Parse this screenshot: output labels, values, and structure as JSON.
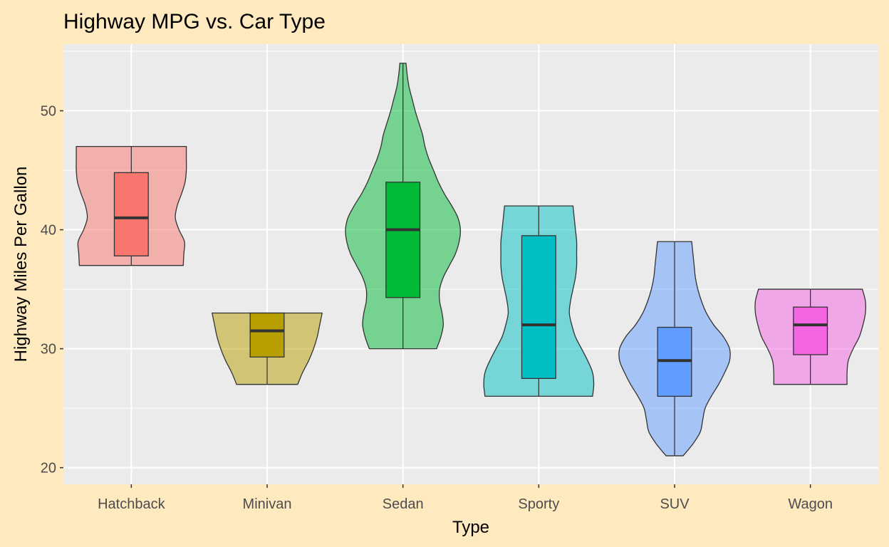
{
  "chart_data": {
    "type": "violin",
    "title": "Highway MPG vs. Car Type",
    "xlabel": "Type",
    "ylabel": "Highway Miles Per Gallon",
    "ylim": [
      18.6,
      55.6
    ],
    "y_ticks": [
      20,
      30,
      40,
      50
    ],
    "grid": true,
    "legend": "none",
    "categories": [
      "Hatchback",
      "Minivan",
      "Sedan",
      "Sporty",
      "SUV",
      "Wagon"
    ],
    "colors": {
      "Hatchback": "#F8766D",
      "Minivan": "#B79F00",
      "Sedan": "#00BA38",
      "Sporty": "#00BFC4",
      "SUV": "#619CFF",
      "Wagon": "#F564E3"
    },
    "series": [
      {
        "category": "Hatchback",
        "min": 37,
        "q1": 37.8,
        "median": 41,
        "q3": 44.8,
        "max": 47,
        "density": [
          [
            37,
            0.85
          ],
          [
            38,
            0.86
          ],
          [
            39,
            0.87
          ],
          [
            40,
            0.78
          ],
          [
            41,
            0.72
          ],
          [
            42,
            0.75
          ],
          [
            43,
            0.82
          ],
          [
            44,
            0.88
          ],
          [
            45,
            0.9
          ],
          [
            46,
            0.9
          ],
          [
            47,
            0.9
          ]
        ]
      },
      {
        "category": "Minivan",
        "min": 27,
        "q1": 29.3,
        "median": 31.5,
        "q3": 33,
        "max": 33,
        "density": [
          [
            27,
            0.5
          ],
          [
            28,
            0.58
          ],
          [
            29,
            0.68
          ],
          [
            30,
            0.76
          ],
          [
            31,
            0.82
          ],
          [
            32,
            0.86
          ],
          [
            33,
            0.9
          ]
        ]
      },
      {
        "category": "Sedan",
        "min": 30,
        "q1": 34.3,
        "median": 40,
        "q3": 44,
        "max": 54,
        "density": [
          [
            30,
            0.55
          ],
          [
            31,
            0.62
          ],
          [
            32,
            0.66
          ],
          [
            33,
            0.64
          ],
          [
            34,
            0.6
          ],
          [
            35,
            0.6
          ],
          [
            36,
            0.66
          ],
          [
            37,
            0.76
          ],
          [
            38,
            0.86
          ],
          [
            39,
            0.92
          ],
          [
            40,
            0.94
          ],
          [
            41,
            0.9
          ],
          [
            42,
            0.8
          ],
          [
            43,
            0.68
          ],
          [
            44,
            0.58
          ],
          [
            45,
            0.5
          ],
          [
            46,
            0.42
          ],
          [
            47,
            0.36
          ],
          [
            48,
            0.32
          ],
          [
            49,
            0.26
          ],
          [
            50,
            0.2
          ],
          [
            51,
            0.15
          ],
          [
            52,
            0.1
          ],
          [
            53,
            0.07
          ],
          [
            54,
            0.05
          ]
        ]
      },
      {
        "category": "Sporty",
        "min": 26,
        "q1": 27.5,
        "median": 32,
        "q3": 39.5,
        "max": 42,
        "density": [
          [
            26,
            0.88
          ],
          [
            27,
            0.9
          ],
          [
            28,
            0.88
          ],
          [
            29,
            0.8
          ],
          [
            30,
            0.7
          ],
          [
            31,
            0.6
          ],
          [
            32,
            0.54
          ],
          [
            33,
            0.5
          ],
          [
            34,
            0.52
          ],
          [
            35,
            0.56
          ],
          [
            36,
            0.6
          ],
          [
            37,
            0.62
          ],
          [
            38,
            0.62
          ],
          [
            39,
            0.62
          ],
          [
            40,
            0.6
          ],
          [
            41,
            0.58
          ],
          [
            42,
            0.56
          ]
        ]
      },
      {
        "category": "SUV",
        "min": 21,
        "q1": 26,
        "median": 29,
        "q3": 31.8,
        "max": 39,
        "density": [
          [
            21,
            0.14
          ],
          [
            22,
            0.3
          ],
          [
            23,
            0.42
          ],
          [
            24,
            0.46
          ],
          [
            25,
            0.5
          ],
          [
            26,
            0.6
          ],
          [
            27,
            0.72
          ],
          [
            28,
            0.82
          ],
          [
            29,
            0.9
          ],
          [
            30,
            0.9
          ],
          [
            31,
            0.8
          ],
          [
            32,
            0.64
          ],
          [
            33,
            0.52
          ],
          [
            34,
            0.44
          ],
          [
            35,
            0.38
          ],
          [
            36,
            0.34
          ],
          [
            37,
            0.32
          ],
          [
            38,
            0.3
          ],
          [
            39,
            0.28
          ]
        ]
      },
      {
        "category": "Wagon",
        "min": 27,
        "q1": 29.5,
        "median": 32,
        "q3": 33.5,
        "max": 35,
        "density": [
          [
            27,
            0.6
          ],
          [
            28,
            0.6
          ],
          [
            29,
            0.62
          ],
          [
            30,
            0.7
          ],
          [
            31,
            0.8
          ],
          [
            32,
            0.86
          ],
          [
            33,
            0.9
          ],
          [
            34,
            0.9
          ],
          [
            35,
            0.85
          ]
        ]
      }
    ]
  }
}
